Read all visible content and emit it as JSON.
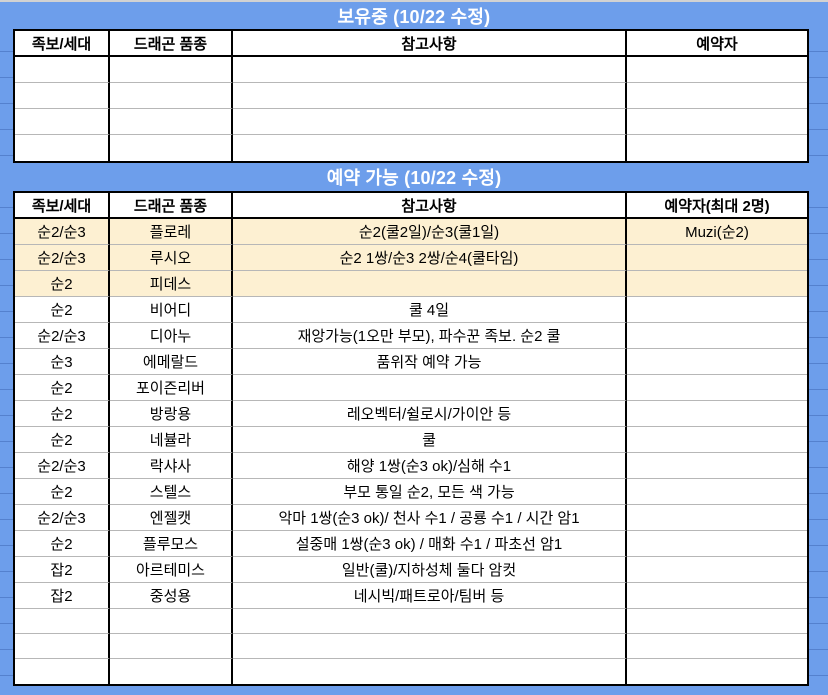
{
  "colors": {
    "background_blue": "#6d9eeb",
    "highlight_row_cream": "#fdf0d2",
    "row_separator_grey": "#b7b7b7",
    "table_border_black": "#000000",
    "top_edge_grey": "#d2d2d2",
    "banner_text_white": "#ffffff"
  },
  "owned_section": {
    "banner_title": "보유중 (10/22 수정)",
    "columns": [
      "족보/세대",
      "드래곤 품종",
      "참고사항",
      "예약자"
    ],
    "rows": [],
    "empty_row_count": 4
  },
  "available_section": {
    "banner_title": "예약 가능 (10/22 수정)",
    "columns": [
      "족보/세대",
      "드래곤 품종",
      "참고사항",
      "예약자(최대 2명)"
    ],
    "rows": [
      {
        "generation": "순2/순3",
        "breed": "플로레",
        "notes": "순2(쿨2일)/순3(쿨1일)",
        "reserver": "Muzi(순2)",
        "highlighted": true
      },
      {
        "generation": "순2/순3",
        "breed": "루시오",
        "notes": "순2 1쌍/순3 2쌍/순4(쿨타임)",
        "reserver": "",
        "highlighted": true
      },
      {
        "generation": "순2",
        "breed": "피데스",
        "notes": "",
        "reserver": "",
        "highlighted": true
      },
      {
        "generation": "순2",
        "breed": "비어디",
        "notes": "쿨 4일",
        "reserver": "",
        "highlighted": false
      },
      {
        "generation": "순2/순3",
        "breed": "디아누",
        "notes": "재앙가능(1오만 부모), 파수꾼 족보. 순2 쿨",
        "reserver": "",
        "highlighted": false
      },
      {
        "generation": "순3",
        "breed": "에메랄드",
        "notes": "품위작 예약 가능",
        "reserver": "",
        "highlighted": false
      },
      {
        "generation": "순2",
        "breed": "포이즌리버",
        "notes": "",
        "reserver": "",
        "highlighted": false
      },
      {
        "generation": "순2",
        "breed": "방랑용",
        "notes": "레오벡터/쉴로시/가이안 등",
        "reserver": "",
        "highlighted": false
      },
      {
        "generation": "순2",
        "breed": "네뷸라",
        "notes": "쿨",
        "reserver": "",
        "highlighted": false
      },
      {
        "generation": "순2/순3",
        "breed": "락샤사",
        "notes": "해양 1쌍(순3 ok)/심해 수1",
        "reserver": "",
        "highlighted": false
      },
      {
        "generation": "순2",
        "breed": "스텔스",
        "notes": "부모 통일 순2, 모든 색 가능",
        "reserver": "",
        "highlighted": false
      },
      {
        "generation": "순2/순3",
        "breed": "엔젤캣",
        "notes": "악마 1쌍(순3 ok)/ 천사 수1 / 공룡 수1 / 시간 암1",
        "reserver": "",
        "highlighted": false
      },
      {
        "generation": "순2",
        "breed": "플루모스",
        "notes": "설중매 1쌍(순3 ok) / 매화 수1 / 파초선 암1",
        "reserver": "",
        "highlighted": false
      },
      {
        "generation": "잡2",
        "breed": "아르테미스",
        "notes": "일반(쿨)/지하성체 둘다 암컷",
        "reserver": "",
        "highlighted": false
      },
      {
        "generation": "잡2",
        "breed": "중성용",
        "notes": "네시빅/패트로아/팀버 등",
        "reserver": "",
        "highlighted": false
      }
    ],
    "empty_row_count": 3
  }
}
